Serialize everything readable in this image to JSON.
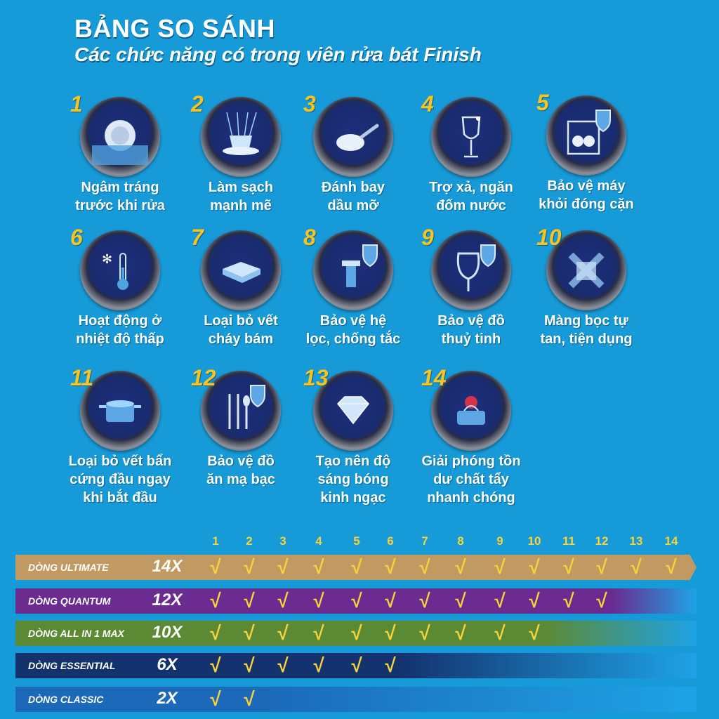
{
  "title": "BẢNG SO SÁNH",
  "subtitle": "Các chức năng có trong viên rửa bát Finish",
  "features": [
    {
      "num": "1",
      "label1": "Ngâm tráng",
      "label2": "trước khi rửa",
      "icon": "plate-water-icon"
    },
    {
      "num": "2",
      "label1": "Làm sạch",
      "label2": "mạnh mẽ",
      "icon": "cup-spray-icon"
    },
    {
      "num": "3",
      "label1": "Đánh bay",
      "label2": "dầu mỡ",
      "icon": "frying-pan-icon"
    },
    {
      "num": "4",
      "label1": "Trợ xả, ngăn",
      "label2": "đốm nước",
      "icon": "wine-glass-icon"
    },
    {
      "num": "5",
      "label1": "Bảo vệ máy",
      "label2": "khỏi đóng cặn",
      "icon": "dishwasher-shield-icon"
    },
    {
      "num": "6",
      "label1": "Hoạt động ở",
      "label2": "nhiệt độ thấp",
      "icon": "thermometer-icon"
    },
    {
      "num": "7",
      "label1": "Loại bỏ vết",
      "label2": "cháy bám",
      "icon": "baking-dish-icon"
    },
    {
      "num": "8",
      "label1": "Bảo vệ hệ",
      "label2": "lọc, chống tắc",
      "icon": "filter-shield-icon"
    },
    {
      "num": "9",
      "label1": "Bảo vệ đồ",
      "label2": "thuỷ tinh",
      "icon": "glass-shield-icon"
    },
    {
      "num": "10",
      "label1": "Màng bọc tự",
      "label2": "tan, tiện dụng",
      "icon": "dissolving-wrap-icon"
    },
    {
      "num": "11",
      "label1": "Loại bỏ vết bẩn",
      "label2": "cứng đầu ngay",
      "label3": "khi bắt đầu",
      "icon": "pot-icon"
    },
    {
      "num": "12",
      "label1": "Bảo vệ đồ",
      "label2": "ăn mạ bạc",
      "icon": "cutlery-shield-icon"
    },
    {
      "num": "13",
      "label1": "Tạo nên độ",
      "label2": "sáng bóng",
      "label3": "kinh ngạc",
      "icon": "diamond-icon"
    },
    {
      "num": "14",
      "label1": "Giải phóng tồn",
      "label2": "dư chất tẩy",
      "label3": "nhanh chóng",
      "icon": "tablet-splash-icon"
    }
  ],
  "columns": [
    "1",
    "2",
    "3",
    "4",
    "5",
    "6",
    "7",
    "8",
    "9",
    "10",
    "11",
    "12",
    "13",
    "14"
  ],
  "check_symbol": "√",
  "rows": [
    {
      "name": "DÒNG ULTIMATE",
      "times": "14X",
      "count": 14,
      "color": "#c09a62"
    },
    {
      "name": "DÒNG QUANTUM",
      "times": "12X",
      "count": 12,
      "color": "#6a2c91"
    },
    {
      "name": "DÒNG ALL IN 1 MAX",
      "times": "10X",
      "count": 10,
      "color": "#5c8a34"
    },
    {
      "name": "DÒNG  ESSENTIAL",
      "times": "6X",
      "count": 6,
      "color": "#14326e"
    },
    {
      "name": "DÒNG  CLASSIC",
      "times": "2X",
      "count": 2,
      "color": "#1b69b8"
    }
  ],
  "colors": {
    "background": "#169ad8",
    "number": "#f7c31e",
    "check": "#f7d23a"
  }
}
